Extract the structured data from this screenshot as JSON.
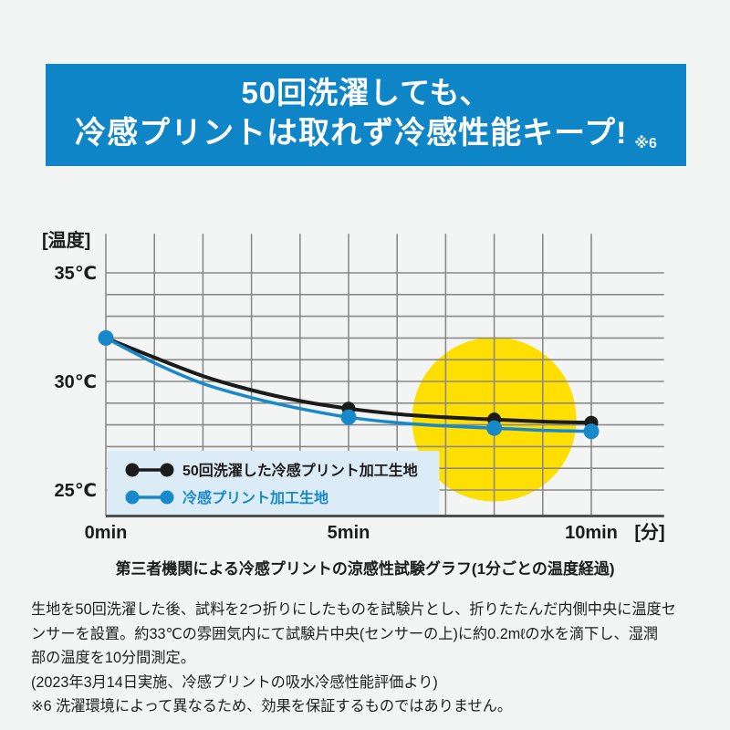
{
  "colors": {
    "page_bg": "#f3f4f4",
    "banner_bg": "#0d85c6",
    "banner_text": "#ffffff",
    "grid_line": "#8a8a8a",
    "axis_line": "#4f4f4f",
    "series_washed": "#1b1b1b",
    "series_plain": "#1789cb",
    "highlight": "#ffdf00",
    "legend_bg": "#dcecf7",
    "text": "#1d1d1d"
  },
  "banner": {
    "line1": "50回洗濯しても、",
    "line2": "冷感プリントは取れず冷感性能キープ!",
    "footnote_marker": "※6"
  },
  "chart_data": {
    "type": "line",
    "title": "第三者機関による冷感プリントの涼感性試験グラフ(1分ごとの温度経過)",
    "ylabel": "[温度]",
    "xlabel_unit": "[分]",
    "y_ticks": [
      {
        "temp": 35,
        "label": "35℃"
      },
      {
        "temp": 30,
        "label": "30℃"
      },
      {
        "temp": 25,
        "label": "25℃"
      }
    ],
    "x_ticks": [
      {
        "min": 0,
        "label": "0min"
      },
      {
        "min": 5,
        "label": "5min"
      },
      {
        "min": 10,
        "label": "10min"
      }
    ],
    "y_gridline_temps": [
      35,
      34,
      33,
      32,
      31,
      30,
      29,
      28,
      27,
      26,
      25
    ],
    "x_gridline_minutes": [
      0,
      1,
      2,
      3,
      4,
      5,
      6,
      7,
      8,
      9,
      10
    ],
    "x_range": [
      0,
      11.5
    ],
    "grid_top_temp": 36.8,
    "grid_bottom_temp": 23.8,
    "grid_on": true,
    "legend_position": "bottom-left-inside",
    "series": [
      {
        "name": "50回洗濯した冷感プリント加工生地",
        "color_key": "series_washed",
        "x": [
          0,
          1,
          2,
          3,
          4,
          5,
          6,
          7,
          8,
          9,
          10
        ],
        "values": [
          32.0,
          31.1,
          30.25,
          29.6,
          29.1,
          28.75,
          28.5,
          28.35,
          28.25,
          28.15,
          28.1
        ],
        "marker_minutes": [
          0,
          5,
          8,
          10
        ]
      },
      {
        "name": "冷感プリント加工生地",
        "color_key": "series_plain",
        "x": [
          0,
          1,
          2,
          3,
          4,
          5,
          6,
          7,
          8,
          9,
          10
        ],
        "values": [
          32.0,
          30.85,
          29.9,
          29.25,
          28.75,
          28.35,
          28.1,
          27.95,
          27.85,
          27.75,
          27.7
        ],
        "marker_minutes": [
          0,
          5,
          8,
          10
        ]
      }
    ],
    "highlight_circle": {
      "center_min": 8.0,
      "center_temp": 28.25,
      "radius_px": 90
    }
  },
  "body": {
    "lines": [
      "生地を50回洗濯した後、試料を2つ折りにしたものを試験片とし、折りたたんだ内側中央に温度セ",
      "ンサーを設置。約33℃の雰囲気内にて試験片中央(センサーの上)に約0.2mℓの水を滴下し、湿潤",
      "部の温度を10分間測定。",
      "(2023年3月14日実施、冷感プリントの吸水冷感性能評価より)",
      "※6 洗濯環境によって異なるため、効果を保証するものではありません。"
    ]
  }
}
